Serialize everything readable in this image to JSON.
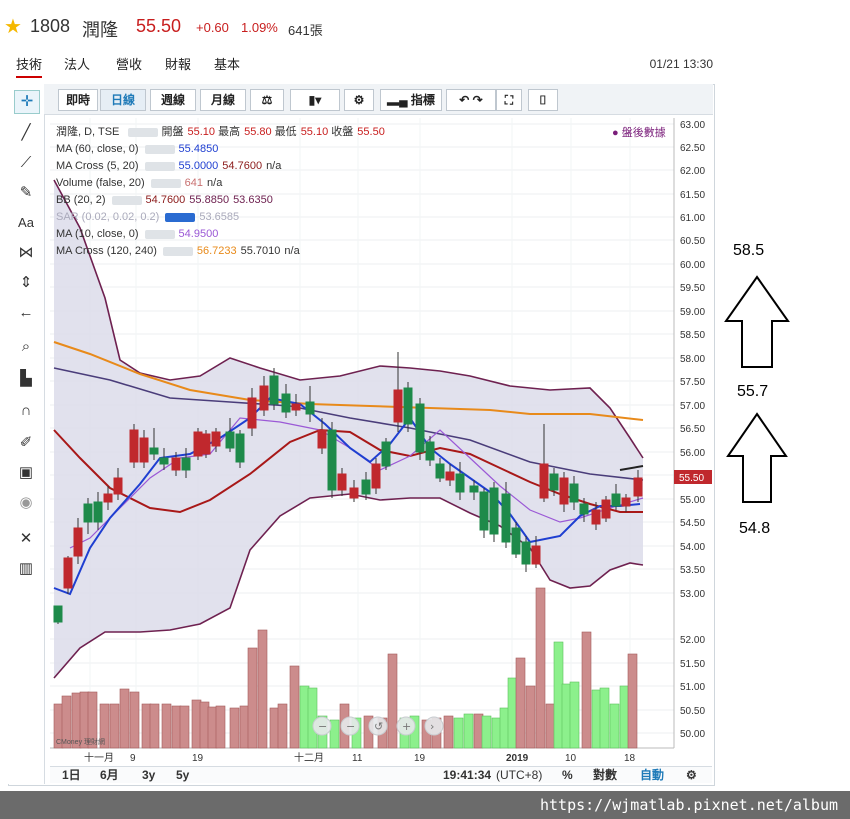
{
  "header": {
    "code": "1808",
    "name": "潤隆",
    "price": "55.50",
    "change": "+0.60",
    "percent": "1.09%",
    "volume": "641張"
  },
  "tabs": [
    "技術",
    "法人",
    "營收",
    "財報",
    "基本"
  ],
  "datetime": "01/21 13:30",
  "toolbar": {
    "btn_realtime": "即時",
    "btn_day": "日線",
    "btn_week": "週線",
    "btn_month": "月線",
    "btn_indicator": "指標"
  },
  "legend": {
    "main": {
      "label": "潤隆, D, TSE",
      "open_lbl": "開盤",
      "open": "55.10",
      "high_lbl": "最高",
      "high": "55.80",
      "low_lbl": "最低",
      "low": "55.10",
      "close_lbl": "收盤",
      "close": "55.50"
    },
    "rows": [
      {
        "label": "MA (60, close, 0)",
        "v1": "55.4850",
        "v2": "",
        "v3": ""
      },
      {
        "label": "MA Cross (5, 20)",
        "v1": "55.0000",
        "v2": "54.7600",
        "v3": "n/a"
      },
      {
        "label": "Volume (false, 20)",
        "v1": "641",
        "v2": "n/a",
        "v3": ""
      },
      {
        "label": "BB (20, 2)",
        "v1": "54.7600",
        "v2": "55.8850",
        "v3": "53.6350"
      },
      {
        "label": "SAR (0.02, 0.02, 0.2)",
        "v1": "53.6585",
        "v2": "",
        "v3": ""
      },
      {
        "label": "MA (10, close, 0)",
        "v1": "54.9500",
        "v2": "",
        "v3": ""
      },
      {
        "label": "MA Cross (120, 240)",
        "v1": "56.7233",
        "v2": "55.7010",
        "v3": "n/a"
      }
    ],
    "after_hours": "盤後數據"
  },
  "yaxis": {
    "ticks": [
      "63.00",
      "62.50",
      "62.00",
      "61.50",
      "61.00",
      "60.50",
      "60.00",
      "59.50",
      "59.00",
      "58.50",
      "58.00",
      "57.50",
      "57.00",
      "56.50",
      "56.00",
      "55.50",
      "55.00",
      "54.50",
      "54.00",
      "53.50",
      "53.00",
      "52.00",
      "51.50",
      "51.00",
      "50.50",
      "50.00"
    ],
    "price_tag": "55.50"
  },
  "xaxis": {
    "ticks": [
      "十一月",
      "9",
      "19",
      "十二月",
      "11",
      "19",
      "2019",
      "10",
      "18"
    ]
  },
  "watermark": "CMoney 理財網",
  "bottom": {
    "r1": "1日",
    "r2": "6月",
    "r3": "3y",
    "r4": "5y",
    "time": "19:41:34",
    "tz": "(UTC+8)",
    "pct": "%",
    "log": "對數",
    "auto": "自動"
  },
  "annotations": {
    "a1": "58.5",
    "a2": "55.7",
    "a3": "54.8"
  },
  "footer": "https://wjmatlab.pixnet.net/album",
  "colors": {
    "up": "#c0282d",
    "down": "#1e8a4a",
    "ma_cross5": "#1f3fd1",
    "ma10": "#9b59d6",
    "ma60": "#e88a1a",
    "bb": "#6e2150",
    "bbfill": "#dcdcea",
    "longma": "#4a3d7a",
    "vol_up": "#cc8c8c",
    "vol_dn": "#8cf08c"
  }
}
